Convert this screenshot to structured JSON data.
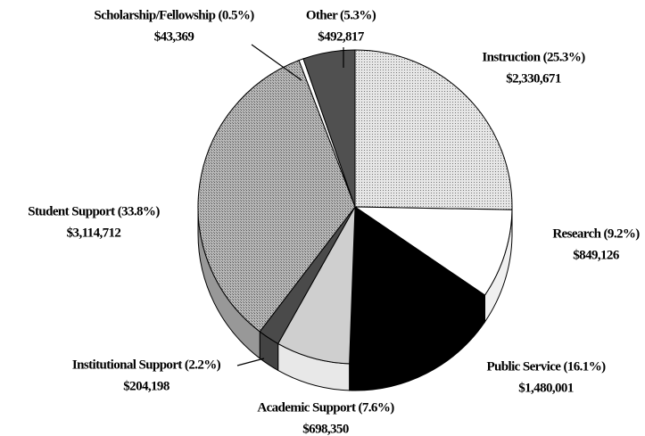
{
  "chart_data": {
    "type": "pie",
    "categories": [
      "Instruction (25.3%)",
      "Research (9.2%)",
      "Public Service (16.1%)",
      "Academic Support (7.6%)",
      "Institutional Support (2.2%)",
      "Student Support (33.8%)",
      "Scholarship/Fellowship (0.5%)",
      "Other (5.3%)"
    ],
    "values": [
      2330671,
      849126,
      1480001,
      698350,
      204198,
      3114712,
      43369,
      492817
    ],
    "value_labels": [
      "$2,330,671",
      "$849,126",
      "$1,480,001",
      "$698,350",
      "$204,198",
      "$3,114,712",
      "$43,369",
      "$492,817"
    ],
    "colors": [
      "#d4d4d4",
      "#ffffff",
      "#000000",
      "#cfcfcf",
      "#4a4a4a",
      "#a9a9a9",
      "#ffffff",
      "#505050"
    ]
  }
}
